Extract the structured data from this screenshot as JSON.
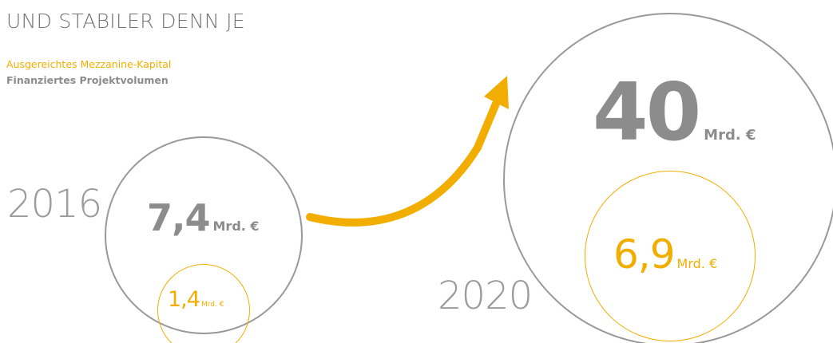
{
  "headline": {
    "line2": "UND STABILER DENN JE"
  },
  "legend": {
    "mezzanine": "Ausgereichtes Mezzanine-Kapital",
    "projekt": "Finanziertes Projektvolumen"
  },
  "colors": {
    "mezzanine": "#f2ae00",
    "projekt": "#8c8c8c",
    "circle_outline": "#999999"
  },
  "years": [
    {
      "year": "2016",
      "projektvolumen": {
        "value": "7,4",
        "unit": "Mrd. €"
      },
      "mezzanine": {
        "value": "1,4",
        "unit": "Mrd. €"
      }
    },
    {
      "year": "2020",
      "projektvolumen": {
        "value": "40",
        "unit": "Mrd. €"
      },
      "mezzanine": {
        "value": "6,9",
        "unit": "Mrd. €"
      }
    }
  ],
  "arrow": {
    "icon": "growth-arrow-icon"
  }
}
